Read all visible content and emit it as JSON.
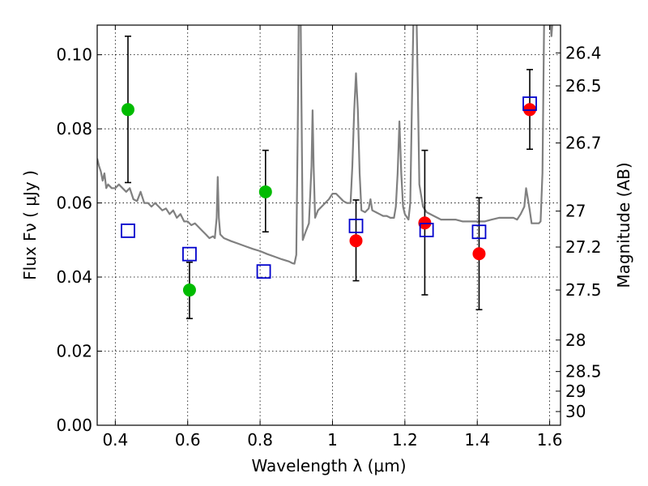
{
  "chart_data": {
    "type": "scatter",
    "xlabel": "Wavelength  λ (μm)",
    "ylabel": "Flux  Fν  ( μJy )",
    "ylabel_right": "Magnitude (AB)",
    "xlim": [
      0.35,
      1.63
    ],
    "ylim": [
      0.0,
      0.108
    ],
    "grid": true,
    "x_ticks": [
      {
        "value": 0.4,
        "label": "0.4"
      },
      {
        "value": 0.6,
        "label": "0.6"
      },
      {
        "value": 0.8,
        "label": "0.8"
      },
      {
        "value": 1.0,
        "label": "1"
      },
      {
        "value": 1.2,
        "label": "1.2"
      },
      {
        "value": 1.4,
        "label": "1.4"
      },
      {
        "value": 1.6,
        "label": "1.6"
      }
    ],
    "y_ticks": [
      {
        "value": 0.0,
        "label": "0.00"
      },
      {
        "value": 0.02,
        "label": "0.02"
      },
      {
        "value": 0.04,
        "label": "0.04"
      },
      {
        "value": 0.06,
        "label": "0.06"
      },
      {
        "value": 0.08,
        "label": "0.08"
      },
      {
        "value": 0.1,
        "label": "0.10"
      }
    ],
    "right_ticks": [
      {
        "label": "26.4",
        "flux": 0.1005
      },
      {
        "label": "26.5",
        "flux": 0.0916
      },
      {
        "label": "26.7",
        "flux": 0.0762
      },
      {
        "label": "27",
        "flux": 0.0578
      },
      {
        "label": "27.2",
        "flux": 0.0481
      },
      {
        "label": "27.5",
        "flux": 0.0365
      },
      {
        "label": "28",
        "flux": 0.023
      },
      {
        "label": "28.5",
        "flux": 0.0145
      },
      {
        "label": "29",
        "flux": 0.0092
      },
      {
        "label": "30",
        "flux": 0.0037
      }
    ],
    "colors": {
      "model": "#808080",
      "green": "#00bb00",
      "red": "#ff0000",
      "blue": "#0000cc",
      "errorbar": "#000000"
    },
    "model_spectrum": [
      [
        0.35,
        0.072
      ],
      [
        0.355,
        0.07
      ],
      [
        0.36,
        0.0685
      ],
      [
        0.365,
        0.066
      ],
      [
        0.37,
        0.068
      ],
      [
        0.375,
        0.064
      ],
      [
        0.38,
        0.065
      ],
      [
        0.39,
        0.064
      ],
      [
        0.4,
        0.064
      ],
      [
        0.41,
        0.065
      ],
      [
        0.42,
        0.064
      ],
      [
        0.43,
        0.063
      ],
      [
        0.44,
        0.064
      ],
      [
        0.45,
        0.061
      ],
      [
        0.46,
        0.0605
      ],
      [
        0.47,
        0.063
      ],
      [
        0.48,
        0.06
      ],
      [
        0.49,
        0.06
      ],
      [
        0.5,
        0.059
      ],
      [
        0.51,
        0.06
      ],
      [
        0.52,
        0.059
      ],
      [
        0.53,
        0.058
      ],
      [
        0.54,
        0.0585
      ],
      [
        0.55,
        0.057
      ],
      [
        0.56,
        0.058
      ],
      [
        0.57,
        0.056
      ],
      [
        0.58,
        0.057
      ],
      [
        0.59,
        0.055
      ],
      [
        0.6,
        0.055
      ],
      [
        0.61,
        0.054
      ],
      [
        0.62,
        0.0545
      ],
      [
        0.63,
        0.0535
      ],
      [
        0.64,
        0.0525
      ],
      [
        0.65,
        0.0515
      ],
      [
        0.66,
        0.0505
      ],
      [
        0.67,
        0.051
      ],
      [
        0.675,
        0.0505
      ],
      [
        0.68,
        0.056
      ],
      [
        0.683,
        0.067
      ],
      [
        0.686,
        0.056
      ],
      [
        0.69,
        0.0515
      ],
      [
        0.7,
        0.0505
      ],
      [
        0.72,
        0.0497
      ],
      [
        0.74,
        0.049
      ],
      [
        0.76,
        0.0483
      ],
      [
        0.78,
        0.0476
      ],
      [
        0.8,
        0.047
      ],
      [
        0.82,
        0.0462
      ],
      [
        0.84,
        0.0455
      ],
      [
        0.86,
        0.0448
      ],
      [
        0.88,
        0.0442
      ],
      [
        0.89,
        0.0437
      ],
      [
        0.895,
        0.0436
      ],
      [
        0.9,
        0.046
      ],
      [
        0.904,
        0.08
      ],
      [
        0.907,
        0.112
      ],
      [
        0.912,
        0.112
      ],
      [
        0.915,
        0.08
      ],
      [
        0.918,
        0.05
      ],
      [
        0.925,
        0.052
      ],
      [
        0.935,
        0.0545
      ],
      [
        0.942,
        0.07
      ],
      [
        0.945,
        0.085
      ],
      [
        0.948,
        0.07
      ],
      [
        0.952,
        0.056
      ],
      [
        0.96,
        0.058
      ],
      [
        0.97,
        0.059
      ],
      [
        0.98,
        0.06
      ],
      [
        0.99,
        0.061
      ],
      [
        1.0,
        0.0625
      ],
      [
        1.01,
        0.0625
      ],
      [
        1.02,
        0.0615
      ],
      [
        1.03,
        0.0605
      ],
      [
        1.04,
        0.06
      ],
      [
        1.05,
        0.06
      ],
      [
        1.055,
        0.07
      ],
      [
        1.06,
        0.085
      ],
      [
        1.065,
        0.095
      ],
      [
        1.07,
        0.085
      ],
      [
        1.075,
        0.068
      ],
      [
        1.08,
        0.058
      ],
      [
        1.09,
        0.0575
      ],
      [
        1.1,
        0.0585
      ],
      [
        1.105,
        0.061
      ],
      [
        1.11,
        0.058
      ],
      [
        1.12,
        0.0575
      ],
      [
        1.13,
        0.057
      ],
      [
        1.14,
        0.0565
      ],
      [
        1.15,
        0.0565
      ],
      [
        1.16,
        0.056
      ],
      [
        1.17,
        0.056
      ],
      [
        1.175,
        0.059
      ],
      [
        1.18,
        0.068
      ],
      [
        1.185,
        0.082
      ],
      [
        1.19,
        0.068
      ],
      [
        1.195,
        0.059
      ],
      [
        1.2,
        0.057
      ],
      [
        1.21,
        0.0555
      ],
      [
        1.215,
        0.06
      ],
      [
        1.22,
        0.09
      ],
      [
        1.224,
        0.112
      ],
      [
        1.232,
        0.112
      ],
      [
        1.236,
        0.09
      ],
      [
        1.24,
        0.065
      ],
      [
        1.25,
        0.059
      ],
      [
        1.26,
        0.0575
      ],
      [
        1.28,
        0.0565
      ],
      [
        1.3,
        0.0555
      ],
      [
        1.32,
        0.0555
      ],
      [
        1.34,
        0.0555
      ],
      [
        1.36,
        0.055
      ],
      [
        1.38,
        0.055
      ],
      [
        1.4,
        0.055
      ],
      [
        1.42,
        0.055
      ],
      [
        1.44,
        0.0555
      ],
      [
        1.46,
        0.056
      ],
      [
        1.48,
        0.056
      ],
      [
        1.5,
        0.056
      ],
      [
        1.51,
        0.0555
      ],
      [
        1.52,
        0.057
      ],
      [
        1.53,
        0.059
      ],
      [
        1.535,
        0.064
      ],
      [
        1.54,
        0.061
      ],
      [
        1.545,
        0.058
      ],
      [
        1.55,
        0.0545
      ],
      [
        1.56,
        0.0545
      ],
      [
        1.57,
        0.0545
      ],
      [
        1.575,
        0.055
      ],
      [
        1.58,
        0.068
      ],
      [
        1.585,
        0.112
      ],
      [
        1.59,
        0.112
      ],
      [
        1.595,
        0.112
      ],
      [
        1.6,
        0.112
      ],
      [
        1.605,
        0.105
      ],
      [
        1.61,
        0.112
      ],
      [
        1.63,
        0.112
      ]
    ],
    "series": [
      {
        "marker": "circle",
        "color": "green",
        "points": [
          {
            "x": 0.435,
            "y": 0.0852,
            "yerr_low": 0.0655,
            "yerr_high": 0.105
          },
          {
            "x": 0.605,
            "y": 0.0365,
            "yerr_low": 0.0288,
            "yerr_high": 0.044
          },
          {
            "x": 0.815,
            "y": 0.063,
            "yerr_low": 0.0522,
            "yerr_high": 0.0742
          }
        ]
      },
      {
        "marker": "circle",
        "color": "red",
        "points": [
          {
            "x": 1.065,
            "y": 0.0498,
            "yerr_low": 0.039,
            "yerr_high": 0.0608
          },
          {
            "x": 1.255,
            "y": 0.0546,
            "yerr_low": 0.0352,
            "yerr_high": 0.0742
          },
          {
            "x": 1.405,
            "y": 0.0463,
            "yerr_low": 0.0312,
            "yerr_high": 0.0614
          },
          {
            "x": 1.545,
            "y": 0.0852,
            "yerr_low": 0.0745,
            "yerr_high": 0.096
          }
        ]
      },
      {
        "marker": "square",
        "color": "blue",
        "points": [
          {
            "x": 0.435,
            "y": 0.0525
          },
          {
            "x": 0.605,
            "y": 0.0462
          },
          {
            "x": 0.81,
            "y": 0.0415
          },
          {
            "x": 1.065,
            "y": 0.0538
          },
          {
            "x": 1.26,
            "y": 0.0527
          },
          {
            "x": 1.405,
            "y": 0.0522
          },
          {
            "x": 1.545,
            "y": 0.0868
          }
        ]
      }
    ]
  }
}
